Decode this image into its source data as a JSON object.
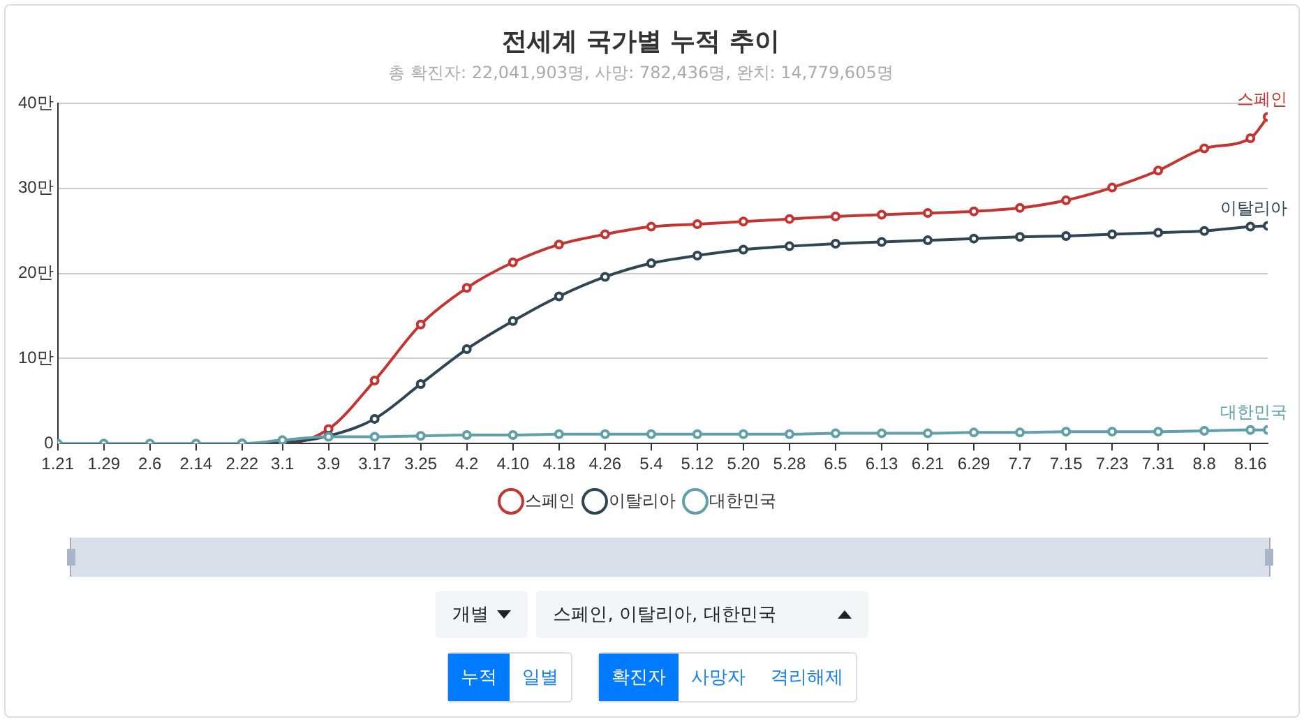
{
  "chart_data": {
    "type": "line",
    "title": "전세계 국가별 누적 추이",
    "subtitle": "총 확진자: 22,041,903명, 사망: 782,436명, 완치: 14,779,605명",
    "x": [
      "--01-21",
      "--01-29",
      "--02-06",
      "--02-14",
      "--02-22",
      "--03-01",
      "--03-09",
      "--03-17",
      "--03-25",
      "--04-02",
      "--04-10",
      "--04-18",
      "--04-26",
      "--05-04",
      "--05-12",
      "--05-20",
      "--05-28",
      "--06-05",
      "--06-13",
      "--06-21",
      "--06-29",
      "--07-07",
      "--07-15",
      "--07-23",
      "--07-31",
      "--08-08",
      "--08-16",
      "--08-19"
    ],
    "series": [
      {
        "name": "스페인",
        "color": "#c23531",
        "values": [
          null,
          null,
          null,
          null,
          0,
          0,
          1.7,
          7.4,
          14,
          18.3,
          21.3,
          23.4,
          24.6,
          25.5,
          25.8,
          26.1,
          26.4,
          26.7,
          26.9,
          27.1,
          27.3,
          27.7,
          28.6,
          30.1,
          32.1,
          34.7,
          35.9,
          38.4
        ]
      },
      {
        "name": "이탈리아",
        "color": "#2f4554",
        "values": [
          null,
          null,
          null,
          null,
          0,
          0.1,
          0.9,
          2.9,
          7,
          11.1,
          14.4,
          17.3,
          19.6,
          21.2,
          22.1,
          22.8,
          23.2,
          23.5,
          23.7,
          23.9,
          24.1,
          24.3,
          24.4,
          24.6,
          24.8,
          25,
          25.5,
          25.6
        ]
      },
      {
        "name": "대한민국",
        "color": "#61a0a8",
        "values": [
          0,
          0,
          0,
          0,
          0,
          0.4,
          0.8,
          0.8,
          0.9,
          1,
          1,
          1.1,
          1.1,
          1.1,
          1.1,
          1.1,
          1.1,
          1.2,
          1.2,
          1.2,
          1.3,
          1.3,
          1.4,
          1.4,
          1.4,
          1.5,
          1.6,
          1.6
        ]
      }
    ],
    "xlim": [
      "--01-21",
      "--08-19"
    ],
    "xticks": [
      {
        "value": "--01-21",
        "label": "1.21"
      },
      {
        "value": "--01-29",
        "label": "1.29"
      },
      {
        "value": "--02-06",
        "label": "2.6"
      },
      {
        "value": "--02-14",
        "label": "2.14"
      },
      {
        "value": "--02-22",
        "label": "2.22"
      },
      {
        "value": "--03-01",
        "label": "3.1"
      },
      {
        "value": "--03-09",
        "label": "3.9"
      },
      {
        "value": "--03-17",
        "label": "3.17"
      },
      {
        "value": "--03-25",
        "label": "3.25"
      },
      {
        "value": "--04-02",
        "label": "4.2"
      },
      {
        "value": "--04-10",
        "label": "4.10"
      },
      {
        "value": "--04-18",
        "label": "4.18"
      },
      {
        "value": "--04-26",
        "label": "4.26"
      },
      {
        "value": "--05-04",
        "label": "5.4"
      },
      {
        "value": "--05-12",
        "label": "5.12"
      },
      {
        "value": "--05-20",
        "label": "5.20"
      },
      {
        "value": "--05-28",
        "label": "5.28"
      },
      {
        "value": "--06-05",
        "label": "6.5"
      },
      {
        "value": "--06-13",
        "label": "6.13"
      },
      {
        "value": "--06-21",
        "label": "6.21"
      },
      {
        "value": "--06-29",
        "label": "6.29"
      },
      {
        "value": "--07-07",
        "label": "7.7"
      },
      {
        "value": "--07-15",
        "label": "7.15"
      },
      {
        "value": "--07-23",
        "label": "7.23"
      },
      {
        "value": "--07-31",
        "label": "7.31"
      },
      {
        "value": "--08-08",
        "label": "8.8"
      },
      {
        "value": "--08-16",
        "label": "8.16"
      }
    ],
    "ylim": [
      0,
      40
    ],
    "yticks": [
      0,
      {
        "value": 10,
        "label": "10만"
      },
      {
        "value": 20,
        "label": "20만"
      },
      {
        "value": 30,
        "label": "30만"
      },
      {
        "value": 40,
        "label": "40만"
      }
    ],
    "grid": "y",
    "legend": "bottom",
    "marker": "circle",
    "line_style": "solid",
    "annotations": [
      "개별",
      "스페인, 이탈리아, 대한민국",
      "누적",
      "일별",
      "확진자",
      "사망자",
      "격리해제"
    ]
  }
}
